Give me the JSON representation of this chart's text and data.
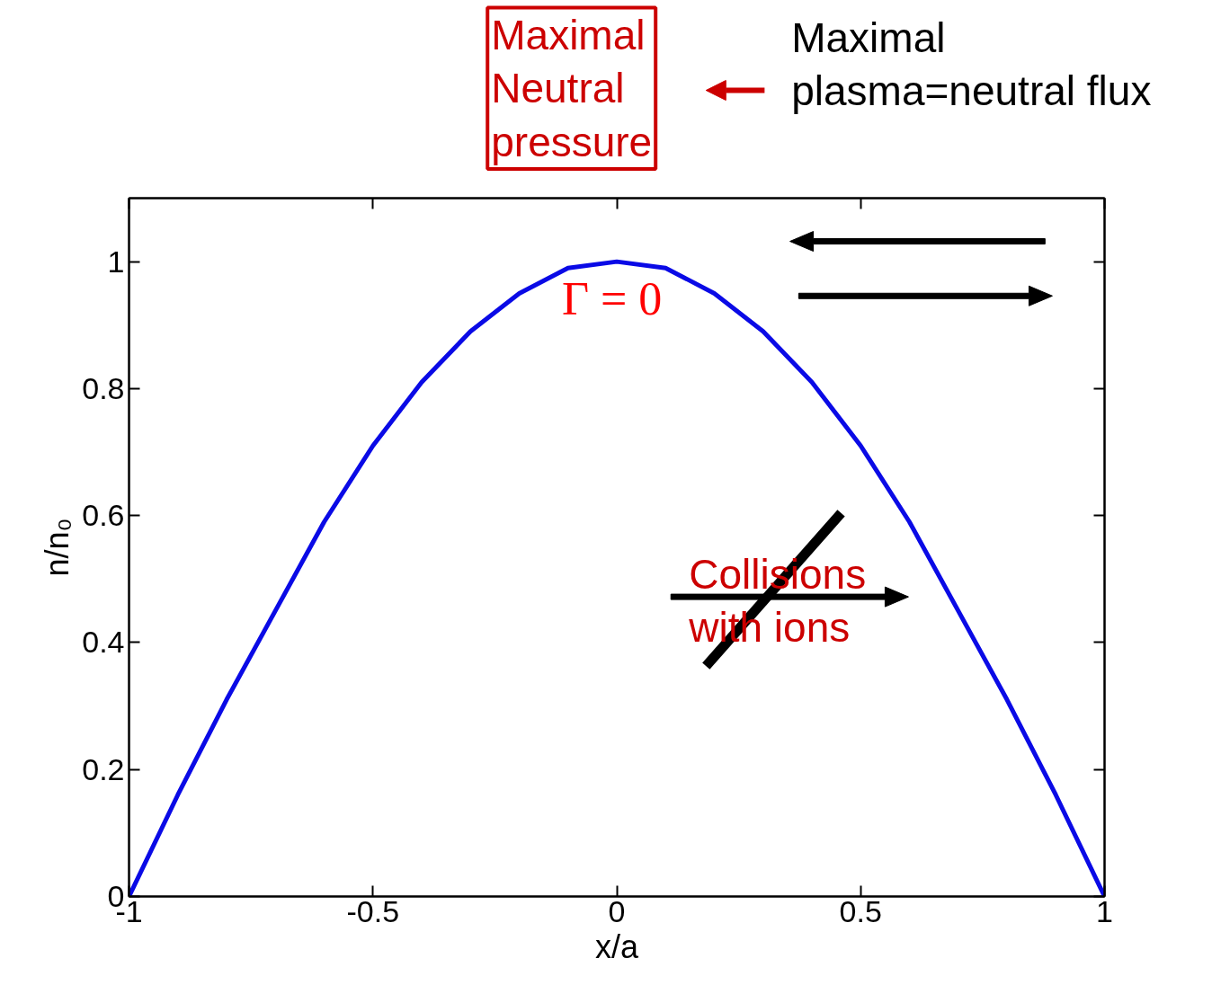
{
  "chart_data": {
    "type": "line",
    "xlabel": "x/a",
    "ylabel": "n/n₀",
    "x": [
      -1,
      -0.9,
      -0.8,
      -0.7,
      -0.6,
      -0.5,
      -0.4,
      -0.3,
      -0.2,
      -0.1,
      0,
      0.1,
      0.2,
      0.3,
      0.4,
      0.5,
      0.6,
      0.7,
      0.8,
      0.9,
      1
    ],
    "series": [
      {
        "color": "#0a0ae6",
        "values": [
          0,
          0.16,
          0.31,
          0.45,
          0.59,
          0.71,
          0.81,
          0.89,
          0.95,
          0.99,
          1,
          0.99,
          0.95,
          0.89,
          0.81,
          0.71,
          0.59,
          0.45,
          0.31,
          0.16,
          0
        ]
      }
    ],
    "xlim": [
      -1,
      1
    ],
    "ylim": [
      0,
      1.1
    ],
    "xticks": [
      -1,
      -0.5,
      0,
      0.5,
      1
    ],
    "yticks": [
      0,
      0.2,
      0.4,
      0.6,
      0.8,
      1
    ],
    "grid": false,
    "marker": "none",
    "line_style": "solid",
    "annotations": [
      "Maximal Neutral pressure",
      "Maximal plasma=neutral flux",
      "Γ = 0",
      "Collisions with ions"
    ]
  }
}
